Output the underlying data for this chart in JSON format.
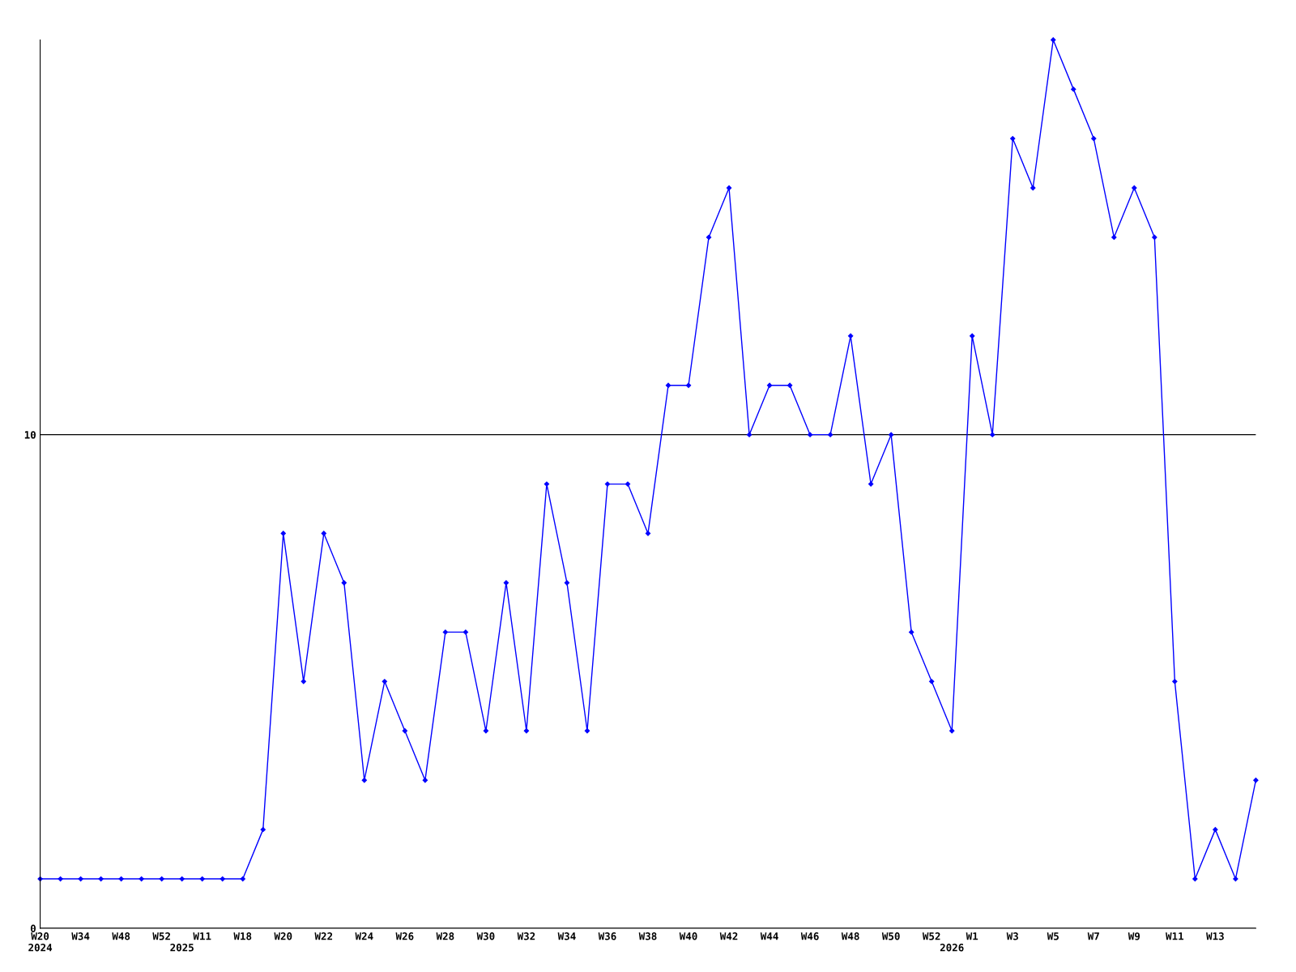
{
  "chart_data": {
    "type": "line",
    "categories": [
      "W20\n2024",
      null,
      "W34",
      null,
      "W48",
      null,
      "W52",
      "\n2025",
      "W11",
      null,
      "W18",
      null,
      "W20",
      null,
      "W22",
      null,
      "W24",
      null,
      "W26",
      null,
      "W28",
      null,
      "W30",
      null,
      "W32",
      null,
      "W34",
      null,
      "W36",
      null,
      "W38",
      null,
      "W40",
      null,
      "W42",
      null,
      "W44",
      null,
      "W46",
      null,
      "W48",
      null,
      "W50",
      null,
      "W52",
      "\n2026",
      "W1",
      null,
      "W3",
      null,
      "W5",
      null,
      "W7",
      null,
      "W9",
      null,
      "W11",
      null,
      "W13",
      null,
      null
    ],
    "series": [
      {
        "color": "#0000ff",
        "values": [
          1,
          1,
          1,
          1,
          1,
          1,
          1,
          1,
          1,
          1,
          1,
          2,
          8,
          5,
          8,
          7,
          3,
          5,
          4,
          3,
          6,
          6,
          4,
          7,
          4,
          9,
          7,
          4,
          9,
          9,
          8,
          11,
          11,
          14,
          15,
          10,
          11,
          11,
          10,
          10,
          12,
          9,
          10,
          6,
          5,
          4,
          12,
          10,
          16,
          15,
          18,
          17,
          16,
          14,
          15,
          14,
          5,
          1,
          2,
          1,
          3
        ]
      }
    ],
    "ylim": [
      0,
      18
    ],
    "yticks": [
      0,
      10
    ],
    "grid": "y",
    "marker": "diamond",
    "line_style": "solid",
    "legend": false
  }
}
